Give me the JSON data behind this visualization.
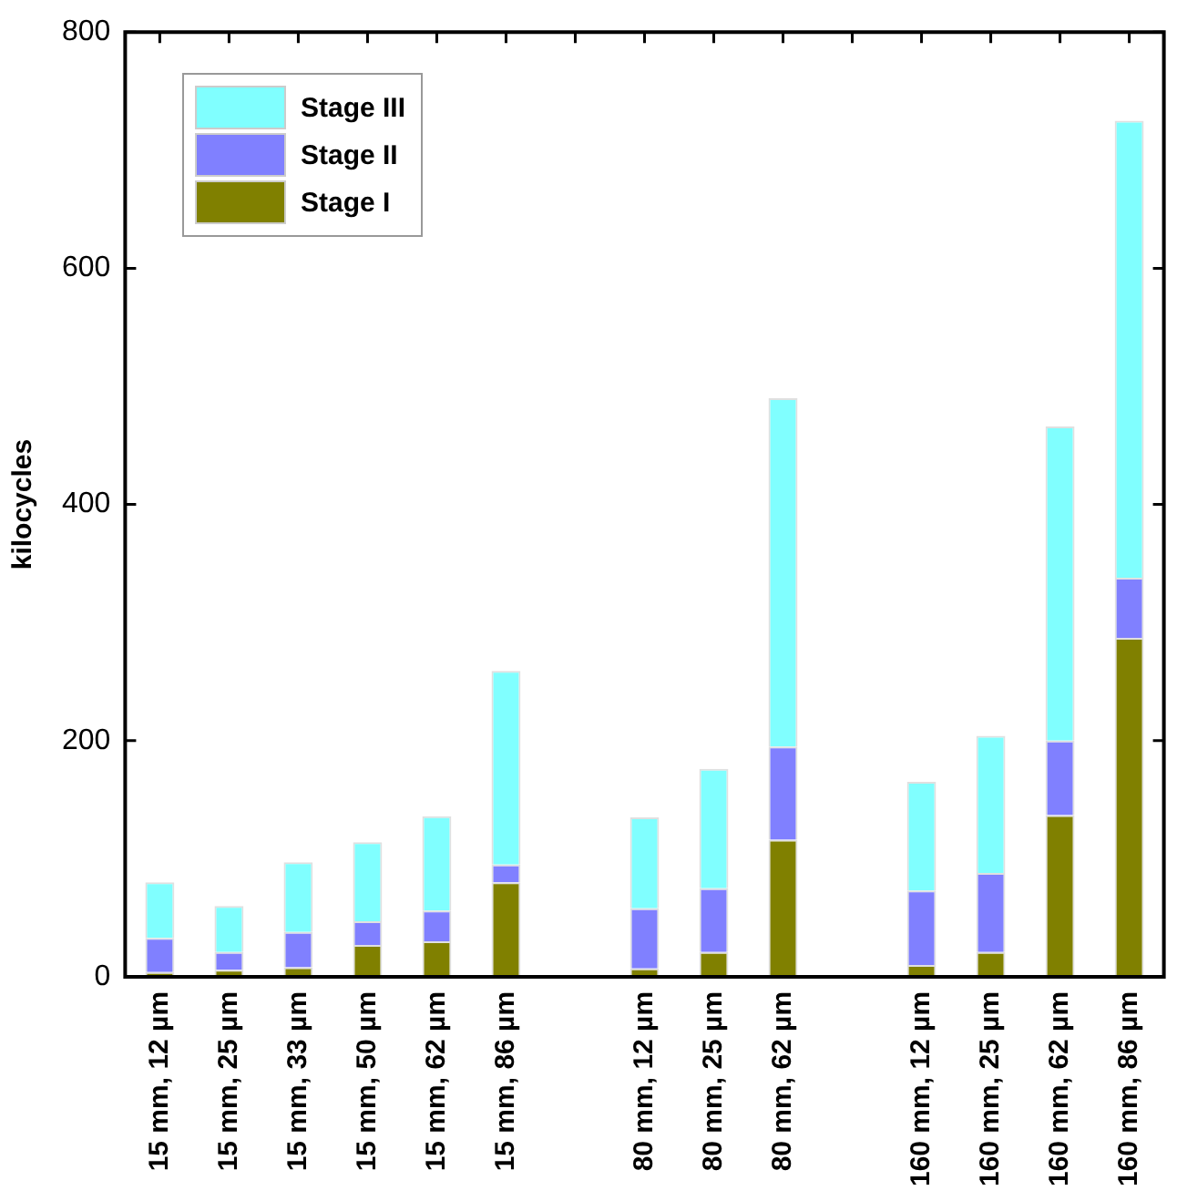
{
  "chart_data": {
    "type": "bar",
    "stacked": true,
    "ylabel": "kilocycles",
    "categories": [
      "15 mm, 12 µm",
      "15 mm, 25 µm",
      "15 mm, 33 µm",
      "15 mm, 50 µm",
      "15 mm, 62 µm",
      "15 mm, 86 µm",
      null,
      "80 mm, 12 µm",
      "80 mm, 25 µm",
      "80 mm, 62 µm",
      null,
      "160 mm, 12 µm",
      "160 mm, 25 µm",
      "160 mm, 62 µm",
      "160 mm, 86 µm"
    ],
    "series": [
      {
        "name": "Stage I",
        "color": "#808000",
        "values": [
          4,
          6,
          8,
          27,
          30,
          80,
          null,
          7,
          21,
          116,
          null,
          10,
          21,
          137,
          287
        ]
      },
      {
        "name": "Stage II",
        "color": "#8080ff",
        "values": [
          29,
          15,
          30,
          20,
          26,
          15,
          null,
          51,
          54,
          79,
          null,
          63,
          67,
          63,
          51
        ]
      },
      {
        "name": "Stage III",
        "color": "#80ffff",
        "values": [
          47,
          39,
          59,
          67,
          80,
          164,
          null,
          77,
          101,
          295,
          null,
          92,
          116,
          266,
          387
        ]
      }
    ],
    "ylim": [
      0,
      800
    ],
    "yticks": [
      0,
      200,
      400,
      600,
      800
    ],
    "grid": false,
    "legend": "top left"
  }
}
